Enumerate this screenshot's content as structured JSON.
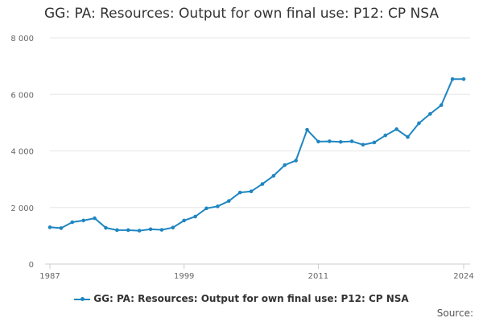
{
  "title": "GG: PA: Resources: Output for own final use: P12: CP NSA",
  "source_label": "Source:",
  "colors": {
    "series": "#1f86c1",
    "grid": "#e6e6e6",
    "axis": "#cccccc"
  },
  "chart_data": {
    "type": "line",
    "title": "GG: PA: Resources: Output for own final use: P12: CP NSA",
    "xlabel": "",
    "ylabel": "",
    "ylim": [
      0,
      8000
    ],
    "y_ticks": [
      0,
      2000,
      4000,
      6000,
      8000
    ],
    "y_tick_labels": [
      "0",
      "2 000",
      "4 000",
      "6 000",
      "8 000"
    ],
    "x_ticks": [
      1987,
      1999,
      2011,
      2024
    ],
    "x_tick_labels": [
      "1987",
      "1999",
      "2011",
      "2024"
    ],
    "xlim": [
      1987,
      2024
    ],
    "grid": true,
    "legend": "bottom-center",
    "series": [
      {
        "name": "GG: PA: Resources: Output for own final use: P12: CP NSA",
        "x": [
          1987,
          1988,
          1989,
          1990,
          1991,
          1992,
          1993,
          1994,
          1995,
          1996,
          1997,
          1998,
          1999,
          2000,
          2001,
          2002,
          2003,
          2004,
          2005,
          2006,
          2007,
          2008,
          2009,
          2010,
          2011,
          2012,
          2013,
          2014,
          2015,
          2016,
          2017,
          2018,
          2019,
          2020,
          2021,
          2022,
          2023,
          2024
        ],
        "values": [
          1300,
          1270,
          1480,
          1540,
          1620,
          1280,
          1200,
          1200,
          1180,
          1230,
          1210,
          1290,
          1540,
          1680,
          1970,
          2040,
          2230,
          2530,
          2570,
          2830,
          3120,
          3500,
          3660,
          4750,
          4330,
          4340,
          4320,
          4340,
          4220,
          4300,
          4550,
          4770,
          4490,
          4980,
          5310,
          5620,
          6540,
          6540
        ]
      }
    ]
  }
}
